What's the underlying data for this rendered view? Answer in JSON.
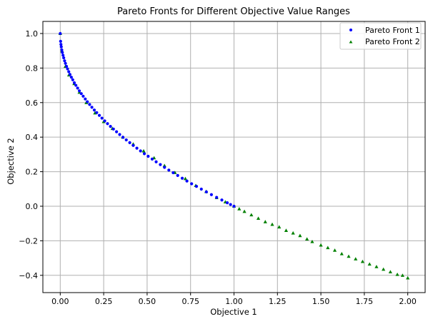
{
  "chart_data": {
    "type": "scatter",
    "title": "Pareto Fronts for Different Objective Value Ranges",
    "xlabel": "Objective 1",
    "ylabel": "Objective 2",
    "xlim": [
      -0.1,
      2.1
    ],
    "ylim": [
      -0.5,
      1.07
    ],
    "xticks": [
      "0.00",
      "0.25",
      "0.50",
      "0.75",
      "1.00",
      "1.25",
      "1.50",
      "1.75",
      "2.00"
    ],
    "yticks": [
      "1.0",
      "0.8",
      "0.6",
      "0.4",
      "0.2",
      "0.0",
      "−0.2",
      "−0.4"
    ],
    "grid": true,
    "legend_position": "top-right",
    "series": [
      {
        "name": "Pareto Front 1",
        "marker": "circle",
        "color": "#0000ff",
        "x": [
          0.0,
          0.002,
          0.004,
          0.006,
          0.009,
          0.012,
          0.016,
          0.02,
          0.025,
          0.03,
          0.036,
          0.042,
          0.049,
          0.056,
          0.064,
          0.072,
          0.081,
          0.09,
          0.1,
          0.11,
          0.121,
          0.132,
          0.144,
          0.156,
          0.169,
          0.182,
          0.196,
          0.21,
          0.225,
          0.24,
          0.256,
          0.272,
          0.289,
          0.306,
          0.324,
          0.342,
          0.361,
          0.38,
          0.4,
          0.42,
          0.441,
          0.462,
          0.484,
          0.506,
          0.529,
          0.552,
          0.576,
          0.6,
          0.625,
          0.65,
          0.676,
          0.702,
          0.729,
          0.756,
          0.784,
          0.812,
          0.841,
          0.87,
          0.9,
          0.93,
          0.961,
          0.98,
          1.0
        ],
        "y": [
          1.0,
          0.955,
          0.937,
          0.923,
          0.905,
          0.89,
          0.874,
          0.859,
          0.842,
          0.827,
          0.81,
          0.795,
          0.779,
          0.763,
          0.747,
          0.732,
          0.715,
          0.7,
          0.684,
          0.668,
          0.652,
          0.637,
          0.621,
          0.605,
          0.589,
          0.573,
          0.557,
          0.542,
          0.526,
          0.51,
          0.494,
          0.478,
          0.462,
          0.447,
          0.431,
          0.415,
          0.399,
          0.384,
          0.368,
          0.352,
          0.336,
          0.32,
          0.304,
          0.289,
          0.273,
          0.257,
          0.241,
          0.225,
          0.209,
          0.194,
          0.178,
          0.162,
          0.146,
          0.13,
          0.115,
          0.099,
          0.083,
          0.067,
          0.051,
          0.036,
          0.02,
          0.01,
          0.0
        ]
      },
      {
        "name": "Pareto Front 2",
        "marker": "triangle",
        "color": "#008000",
        "x": [
          0.0,
          0.01,
          0.03,
          0.05,
          0.08,
          0.11,
          0.15,
          0.2,
          0.25,
          0.3,
          0.36,
          0.42,
          0.48,
          0.54,
          0.6,
          0.66,
          0.72,
          0.78,
          0.84,
          0.9,
          0.95,
          1.0,
          1.03,
          1.06,
          1.1,
          1.14,
          1.18,
          1.22,
          1.26,
          1.3,
          1.34,
          1.38,
          1.42,
          1.45,
          1.5,
          1.54,
          1.58,
          1.62,
          1.66,
          1.7,
          1.74,
          1.78,
          1.82,
          1.86,
          1.9,
          1.94,
          1.97,
          2.0
        ],
        "y": [
          1.0,
          0.9,
          0.81,
          0.76,
          0.71,
          0.66,
          0.6,
          0.54,
          0.49,
          0.45,
          0.4,
          0.36,
          0.32,
          0.28,
          0.235,
          0.195,
          0.16,
          0.12,
          0.085,
          0.05,
          0.025,
          0.0,
          -0.015,
          -0.03,
          -0.05,
          -0.07,
          -0.09,
          -0.105,
          -0.12,
          -0.14,
          -0.155,
          -0.17,
          -0.19,
          -0.205,
          -0.225,
          -0.24,
          -0.255,
          -0.275,
          -0.29,
          -0.305,
          -0.32,
          -0.335,
          -0.35,
          -0.365,
          -0.38,
          -0.395,
          -0.4,
          -0.415
        ]
      }
    ]
  }
}
